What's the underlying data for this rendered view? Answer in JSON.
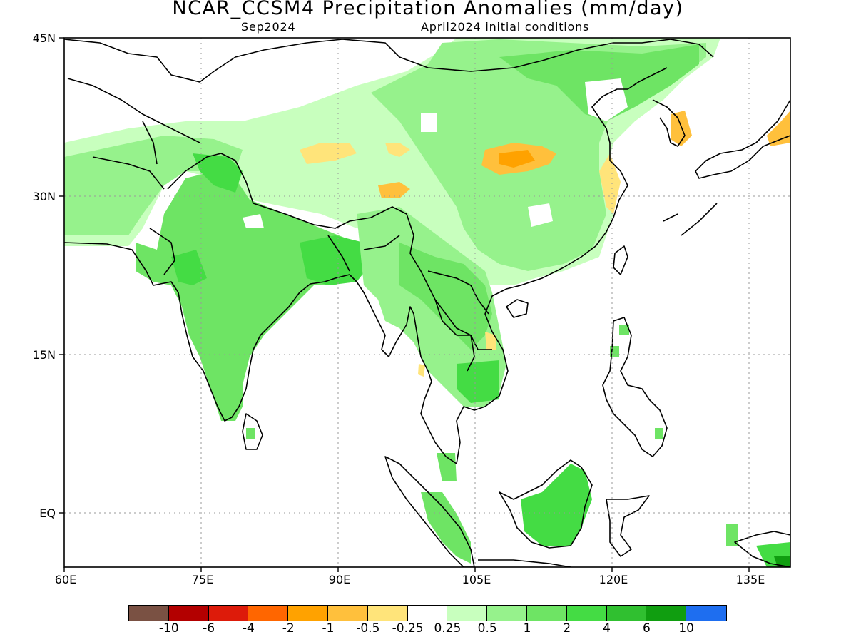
{
  "title": "NCAR_CCSM4 Precipitation Anomalies (mm/day)",
  "subtitle_left": "Sep2024",
  "subtitle_right": "April2024 initial conditions",
  "chart_data": {
    "type": "heatmap",
    "variable": "precipitation anomaly",
    "units": "mm/day",
    "lon_range": [
      60,
      140
    ],
    "lat_range": [
      -6,
      45
    ],
    "x_ticks": [
      "60E",
      "75E",
      "90E",
      "105E",
      "120E",
      "135E"
    ],
    "y_ticks": [
      "45N",
      "30N",
      "15N",
      "EQ"
    ],
    "grid": "dotted",
    "legend_placement": "bottom",
    "colorbar": {
      "labels": [
        "-10",
        "-6",
        "-4",
        "-2",
        "-1",
        "-0.5",
        "-0.25",
        "0.25",
        "0.5",
        "1",
        "2",
        "4",
        "6",
        "10"
      ],
      "colors": [
        "#7a5143",
        "#b30000",
        "#dd1b0a",
        "#ff6600",
        "#ffa200",
        "#ffc03c",
        "#ffe47a",
        "#ffffff",
        "#c8ffbe",
        "#96f28c",
        "#6ee464",
        "#44dc44",
        "#30c030",
        "#109e10",
        "#1e6ef0"
      ]
    },
    "features": [
      {
        "region": "India",
        "anomaly_class": "1 to 2"
      },
      {
        "region": "Central India",
        "anomaly_class": "2 to 4"
      },
      {
        "region": "Northern China",
        "anomaly_class": "1 to 2"
      },
      {
        "region": "Central China",
        "anomaly_class": "-1 to -0.5"
      },
      {
        "region": "Tibetan Plateau",
        "anomaly_class": "-1 to -0.5"
      },
      {
        "region": "Korea",
        "anomaly_class": "-1 to -0.5"
      },
      {
        "region": "Southern Japan",
        "anomaly_class": "-1 to -0.5"
      },
      {
        "region": "Borneo",
        "anomaly_class": "2 to 4"
      },
      {
        "region": "Sumatra",
        "anomaly_class": "1 to 2"
      },
      {
        "region": "New Guinea",
        "anomaly_class": "4 to 6"
      },
      {
        "region": "Indochina",
        "anomaly_class": "0.5 to 2"
      }
    ]
  }
}
